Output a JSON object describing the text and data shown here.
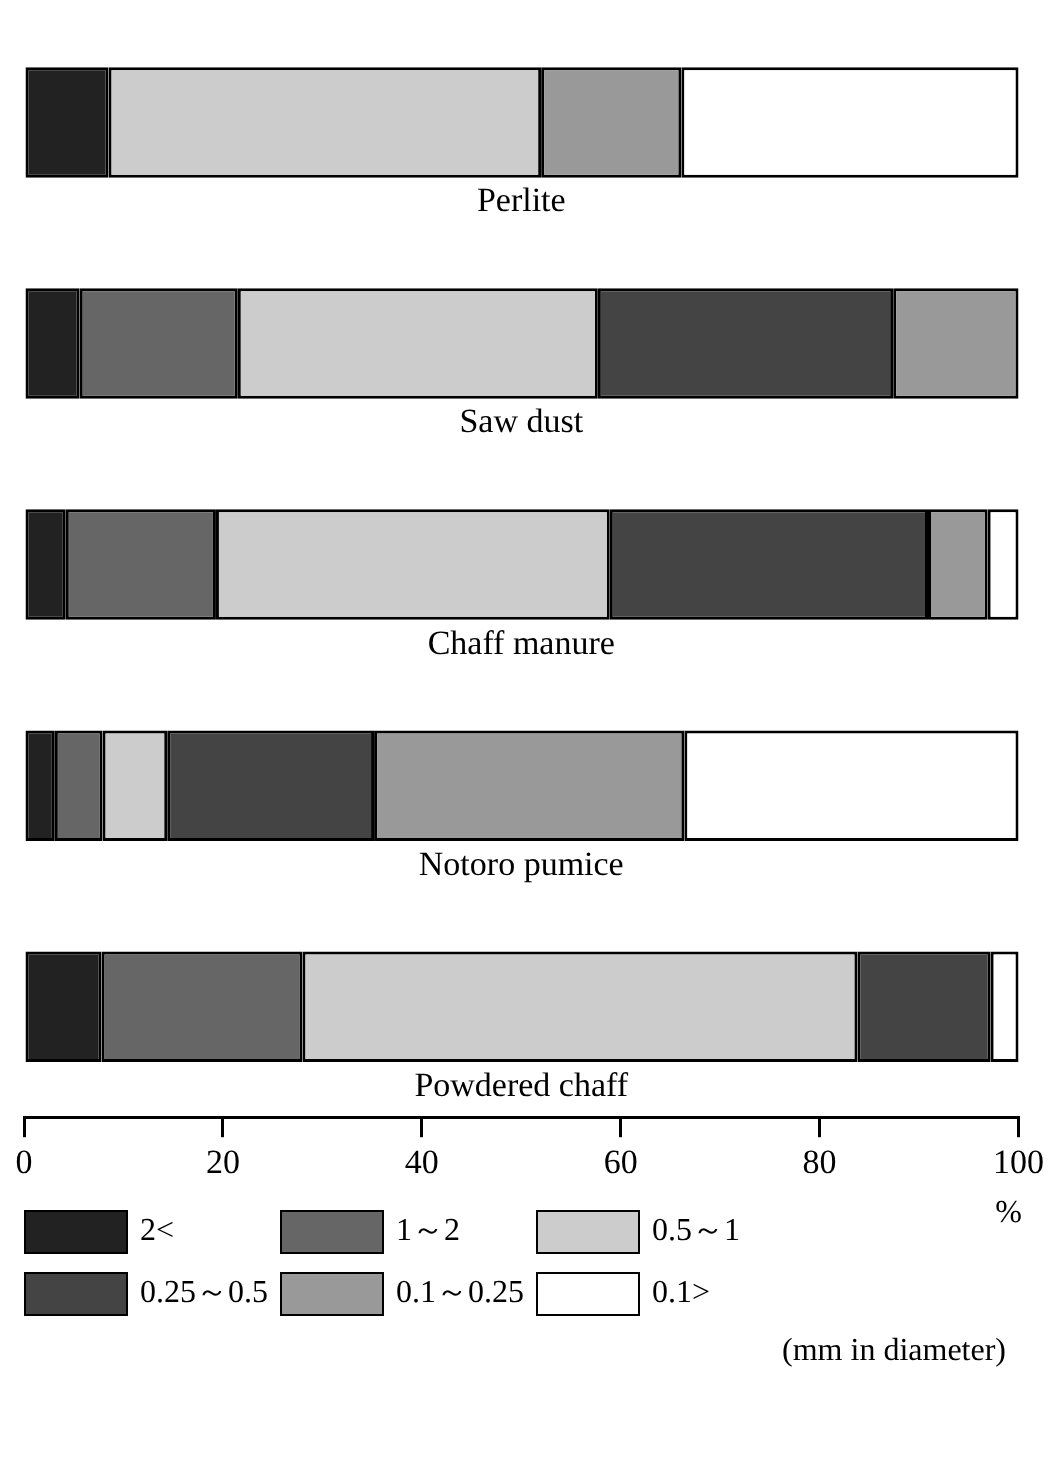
{
  "chart_data": {
    "type": "bar",
    "orientation": "horizontal",
    "stacked": true,
    "categories": [
      "Perlite",
      "Saw dust",
      "Chaff manure",
      "Notoro pumice",
      "Powdered chaff"
    ],
    "series": [
      {
        "name": "2<",
        "color": "#222222",
        "values": [
          8.5,
          5.6,
          4.2,
          3.1,
          7.8
        ]
      },
      {
        "name": "1～2",
        "color": "#666666",
        "values": [
          0,
          15.9,
          15.1,
          4.8,
          20.2
        ]
      },
      {
        "name": "0.5～1",
        "color": "#cccccc",
        "values": [
          43.5,
          36.2,
          39.6,
          6.5,
          55.8
        ]
      },
      {
        "name": "0.25～0.5",
        "color": "#444444",
        "values": [
          0,
          29.7,
          32.0,
          20.8,
          13.4
        ]
      },
      {
        "name": "0.1～0.25",
        "color": "#999999",
        "values": [
          14.1,
          12.6,
          6.0,
          31.2,
          0
        ]
      },
      {
        "name": "0.1>",
        "color": "#ffffff",
        "values": [
          33.9,
          0,
          3.1,
          33.6,
          2.8
        ]
      }
    ],
    "xlim": [
      0,
      100
    ],
    "xticks": [
      0,
      20,
      40,
      60,
      80,
      100
    ],
    "xlabel": "%",
    "grid": false,
    "legend": "bottom",
    "tick_labels": "x",
    "annotations": [
      "(mm in diameter)"
    ]
  }
}
